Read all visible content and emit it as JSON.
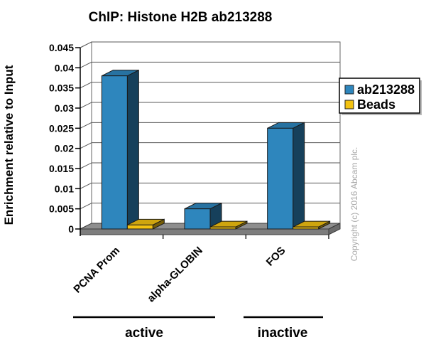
{
  "title": "ChIP: Histone H2B ab213288",
  "ylabel": "Enrichment relative to Input",
  "copyright": "Copyright (c) 2016 Abcam plc.",
  "legend": {
    "items": [
      {
        "label": "ab213288",
        "color": "#2e86bd"
      },
      {
        "label": "Beads",
        "color": "#f3c211"
      }
    ]
  },
  "groups": [
    {
      "label": "active",
      "categories": [
        "PCNA Prom",
        "alpha-GLOBIN"
      ]
    },
    {
      "label": "inactive",
      "categories": [
        "FOS"
      ]
    }
  ],
  "chart_data": {
    "type": "bar",
    "style": "3d-clustered-column",
    "title": "ChIP: Histone H2B ab213288",
    "xlabel": "",
    "ylabel": "Enrichment relative to Input",
    "categories": [
      "PCNA Prom",
      "alpha-GLOBIN",
      "FOS"
    ],
    "series": [
      {
        "name": "ab213288",
        "color": "#2e86bd",
        "values": [
          0.038,
          0.005,
          0.025
        ]
      },
      {
        "name": "Beads",
        "color": "#f3c211",
        "values": [
          0.001,
          0.0005,
          0.0005
        ]
      }
    ],
    "ylim": [
      0,
      0.045
    ],
    "ytick_step": 0.005,
    "yticks": [
      "0",
      "0.005",
      "0.01",
      "0.015",
      "0.02",
      "0.025",
      "0.03",
      "0.035",
      "0.04",
      "0.045"
    ],
    "grid": true,
    "legend_position": "right",
    "wall_color": "#ffffff",
    "floor_color": "#8e8e8e"
  }
}
